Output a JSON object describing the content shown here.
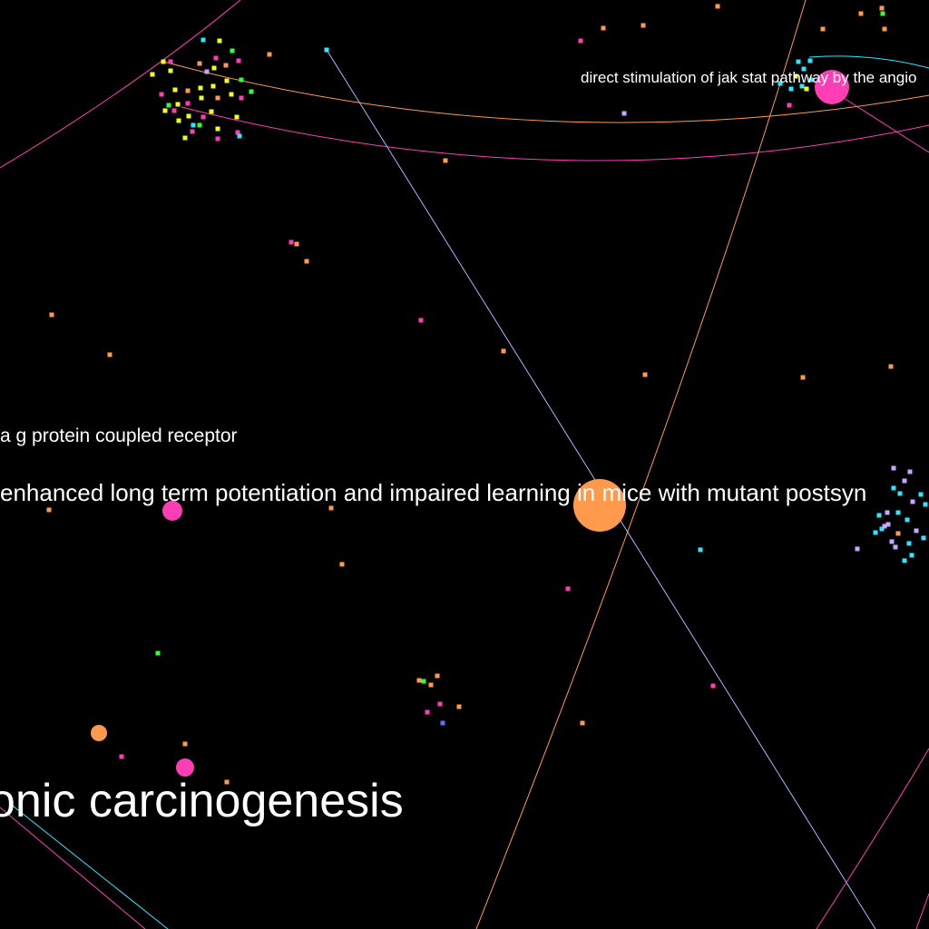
{
  "labels": {
    "top_right": "direct stimulation of jak stat pathway by the angio",
    "left_small": "a g protein coupled receptor",
    "middle": "enhanced long term potentiation and impaired learning in mice with mutant postsyn",
    "bottom": "onic carcinogenesis"
  },
  "colors": {
    "background": "#000000",
    "orange": "#ff9a4d",
    "magenta": "#ff3eb5",
    "cyan": "#2ee6ff",
    "yellow": "#f5ff1a",
    "green": "#33ff33",
    "lavender": "#c9a6ff",
    "blue": "#6b6bff",
    "edge_blue": "#a8b8ff"
  }
}
